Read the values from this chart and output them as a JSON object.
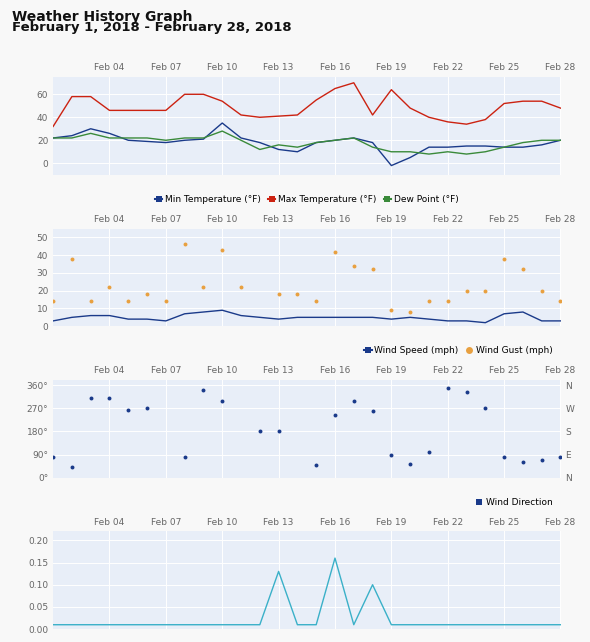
{
  "title_line1": "Weather History Graph",
  "title_line2": "February 1, 2018 - February 28, 2018",
  "x_days": [
    1,
    2,
    3,
    4,
    5,
    6,
    7,
    8,
    9,
    10,
    11,
    12,
    13,
    14,
    15,
    16,
    17,
    18,
    19,
    20,
    21,
    22,
    23,
    24,
    25,
    26,
    27,
    28
  ],
  "xtick_positions": [
    4,
    7,
    10,
    13,
    16,
    19,
    22,
    25,
    28
  ],
  "xtick_labels": [
    "Feb 04",
    "Feb 07",
    "Feb 10",
    "Feb 13",
    "Feb 16",
    "Feb 19",
    "Feb 22",
    "Feb 25",
    "Feb 28"
  ],
  "temp_min": [
    22,
    24,
    30,
    26,
    20,
    19,
    18,
    20,
    21,
    35,
    22,
    18,
    12,
    10,
    18,
    20,
    22,
    18,
    -2,
    5,
    14,
    14,
    15,
    15,
    14,
    14,
    16,
    20
  ],
  "temp_max": [
    32,
    58,
    58,
    46,
    46,
    46,
    46,
    60,
    60,
    54,
    42,
    40,
    41,
    42,
    55,
    65,
    70,
    42,
    64,
    48,
    40,
    36,
    34,
    38,
    52,
    54,
    54,
    48
  ],
  "dew_point": [
    22,
    22,
    26,
    22,
    22,
    22,
    20,
    22,
    22,
    28,
    20,
    12,
    16,
    14,
    18,
    20,
    22,
    14,
    10,
    10,
    8,
    10,
    8,
    10,
    14,
    18,
    20,
    20
  ],
  "wind_speed": [
    3,
    5,
    6,
    6,
    4,
    4,
    3,
    7,
    8,
    9,
    6,
    5,
    4,
    5,
    5,
    5,
    5,
    5,
    4,
    5,
    4,
    3,
    3,
    2,
    7,
    8,
    3,
    3
  ],
  "wind_gust_x": [
    1,
    2,
    3,
    4,
    5,
    6,
    7,
    8,
    9,
    10,
    11,
    13,
    14,
    15,
    16,
    17,
    18,
    19,
    20,
    21,
    22,
    23,
    24,
    25,
    26,
    27,
    28
  ],
  "wind_gust_y": [
    14,
    38,
    14,
    22,
    14,
    18,
    14,
    46,
    22,
    43,
    22,
    18,
    18,
    14,
    42,
    34,
    32,
    9,
    8,
    14,
    14,
    20,
    20,
    38,
    32,
    20,
    14
  ],
  "wind_dir_x": [
    1,
    2,
    3,
    4,
    5,
    6,
    8,
    9,
    10,
    12,
    13,
    15,
    16,
    17,
    18,
    19,
    20,
    21,
    22,
    23,
    24,
    25,
    26,
    27,
    28
  ],
  "wind_dir_y": [
    80,
    40,
    310,
    310,
    265,
    270,
    80,
    340,
    300,
    180,
    180,
    50,
    245,
    300,
    260,
    90,
    55,
    100,
    350,
    335,
    270,
    82,
    60,
    70,
    80
  ],
  "precip_x": [
    1,
    2,
    3,
    4,
    5,
    6,
    7,
    8,
    9,
    10,
    11,
    12,
    13,
    14,
    15,
    16,
    17,
    18,
    19,
    20,
    21,
    22,
    23,
    24,
    25,
    26,
    27,
    28
  ],
  "precip_y": [
    0.01,
    0.01,
    0.01,
    0.01,
    0.01,
    0.01,
    0.01,
    0.01,
    0.01,
    0.01,
    0.01,
    0.01,
    0.13,
    0.01,
    0.01,
    0.16,
    0.01,
    0.1,
    0.01,
    0.01,
    0.01,
    0.01,
    0.01,
    0.01,
    0.01,
    0.01,
    0.01,
    0.01
  ],
  "bg_color": "#f8f8f8",
  "plot_bg": "#e8eef8",
  "grid_color": "#ffffff",
  "temp_min_color": "#1a3a8a",
  "temp_max_color": "#cc2211",
  "dew_color": "#3a8a3a",
  "wind_speed_color": "#1a3a8a",
  "wind_gust_color": "#e8a040",
  "wind_dir_color": "#1a3a8a",
  "precip_color": "#3ab0c8"
}
